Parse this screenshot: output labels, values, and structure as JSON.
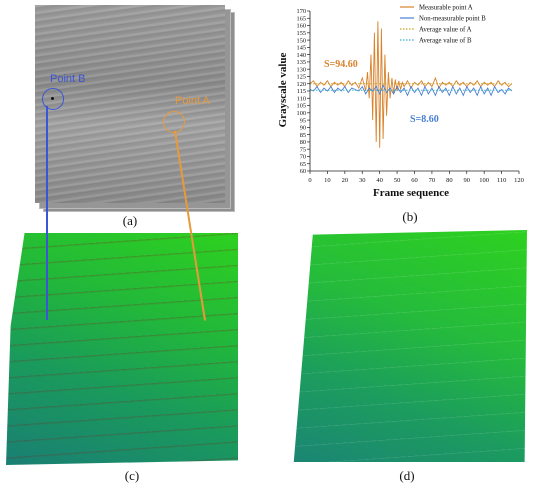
{
  "panels": {
    "a": {
      "caption": "(a)",
      "labels": {
        "point_b": "Point B",
        "point_a": "Point A"
      },
      "colors": {
        "point_b": "#3a55d6",
        "point_a": "#e89a3b"
      }
    },
    "b": {
      "caption": "(b)",
      "annotations": {
        "a": "S=94.60",
        "b": "S=8.60"
      }
    },
    "c": {
      "caption": "(c)"
    },
    "d": {
      "caption": "(d)"
    }
  },
  "chart_data": {
    "type": "line",
    "xlabel": "Frame sequence",
    "ylabel": "Grayscale value",
    "xlim": [
      0,
      120
    ],
    "ylim": [
      60,
      170
    ],
    "xticks": [
      0,
      10,
      20,
      30,
      40,
      50,
      60,
      70,
      80,
      90,
      100,
      110,
      120
    ],
    "yticks": [
      60,
      65,
      70,
      75,
      80,
      85,
      90,
      95,
      100,
      105,
      110,
      115,
      120,
      125,
      130,
      135,
      140,
      145,
      150,
      155,
      160,
      165,
      170
    ],
    "grid": false,
    "legend_position": "top-right",
    "series": [
      {
        "name": "Measurable point A",
        "color": "#d9822b",
        "style": "solid",
        "x": [
          0,
          2,
          4,
          6,
          8,
          10,
          12,
          14,
          16,
          18,
          20,
          22,
          24,
          26,
          28,
          30,
          32,
          33,
          34,
          35,
          36,
          37,
          38,
          39,
          40,
          41,
          42,
          43,
          44,
          45,
          46,
          47,
          48,
          49,
          50,
          51,
          52,
          53,
          54,
          56,
          58,
          60,
          62,
          64,
          66,
          68,
          70,
          72,
          74,
          76,
          78,
          80,
          82,
          84,
          86,
          88,
          90,
          92,
          94,
          96,
          98,
          100,
          102,
          104,
          106,
          108,
          110,
          112,
          114,
          116
        ],
        "y": [
          120,
          122,
          118,
          121,
          119,
          122,
          118,
          121,
          119,
          121,
          118,
          122,
          119,
          121,
          117,
          124,
          115,
          128,
          110,
          140,
          95,
          155,
          80,
          163,
          76,
          158,
          82,
          140,
          98,
          128,
          110,
          124,
          113,
          123,
          115,
          122,
          116,
          121,
          118,
          122,
          117,
          121,
          119,
          122,
          118,
          121,
          118,
          124,
          117,
          121,
          119,
          121,
          118,
          122,
          119,
          121,
          118,
          121,
          119,
          122,
          118,
          121,
          119,
          121,
          118,
          122,
          119,
          121,
          118,
          120
        ]
      },
      {
        "name": "Non-measurable point B",
        "color": "#4a7fd4",
        "style": "solid",
        "x": [
          0,
          2,
          4,
          6,
          8,
          10,
          12,
          14,
          16,
          18,
          20,
          22,
          24,
          26,
          28,
          30,
          32,
          34,
          36,
          38,
          40,
          42,
          44,
          46,
          48,
          50,
          52,
          54,
          56,
          58,
          60,
          62,
          64,
          66,
          68,
          70,
          72,
          74,
          76,
          78,
          80,
          82,
          84,
          86,
          88,
          90,
          92,
          94,
          96,
          98,
          100,
          102,
          104,
          106,
          108,
          110,
          112,
          114,
          116
        ],
        "y": [
          116,
          115,
          118,
          114,
          117,
          115,
          118,
          114,
          117,
          115,
          118,
          114,
          117,
          116,
          115,
          118,
          113,
          117,
          115,
          118,
          113,
          119,
          114,
          117,
          113,
          118,
          114,
          117,
          112,
          118,
          114,
          117,
          112,
          118,
          113,
          117,
          112,
          118,
          114,
          117,
          112,
          118,
          113,
          117,
          112,
          118,
          114,
          117,
          112,
          118,
          113,
          117,
          112,
          118,
          114,
          116,
          113,
          117,
          115
        ]
      },
      {
        "name": "Average value of A",
        "color": "#c9a227",
        "style": "dotted",
        "x": [
          0,
          116
        ],
        "y": [
          120,
          120
        ]
      },
      {
        "name": "Average value of B",
        "color": "#3bb0c9",
        "style": "dotted",
        "x": [
          0,
          116
        ],
        "y": [
          115.5,
          115.5
        ]
      }
    ]
  }
}
